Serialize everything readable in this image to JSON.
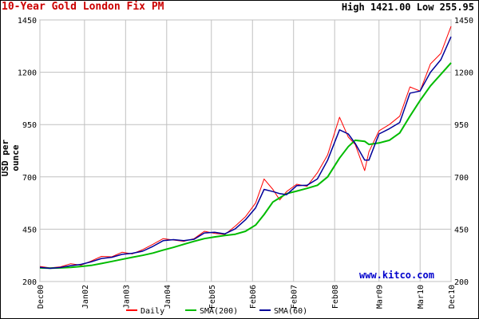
{
  "chart_data": {
    "type": "line",
    "title": "10-Year Gold London Fix PM",
    "summary": "High 1421.00 Low 255.95",
    "ylabel": "USD per ounce",
    "watermark": "www.kitco.com",
    "ylim": [
      200,
      1450
    ],
    "yticks": [
      200,
      450,
      700,
      950,
      1200,
      1450
    ],
    "xlim": [
      "2000-12-01",
      "2010-12-01"
    ],
    "xticks": [
      "Dec00",
      "Jan02",
      "Jan03",
      "Jan04",
      "Feb05",
      "Feb06",
      "Feb07",
      "Feb08",
      "Mar09",
      "Mar10",
      "Dec10"
    ],
    "grid": true,
    "legend_position": "bottom",
    "colors": {
      "daily": "#ff0000",
      "sma200": "#00bb00",
      "sma60": "#000099",
      "title": "#cc0000",
      "watermark": "#0000cc"
    },
    "x": [
      "2000-12-01",
      "2001-03-01",
      "2001-06-01",
      "2001-09-01",
      "2001-12-01",
      "2002-03-01",
      "2002-06-01",
      "2002-09-01",
      "2002-12-01",
      "2003-03-01",
      "2003-06-01",
      "2003-09-01",
      "2003-12-01",
      "2004-03-01",
      "2004-06-01",
      "2004-09-01",
      "2004-12-01",
      "2005-03-01",
      "2005-06-01",
      "2005-09-01",
      "2005-12-01",
      "2006-03-01",
      "2006-05-15",
      "2006-08-01",
      "2006-10-01",
      "2006-12-01",
      "2007-03-01",
      "2007-06-01",
      "2007-09-01",
      "2007-12-01",
      "2008-03-15",
      "2008-06-01",
      "2008-08-01",
      "2008-10-25",
      "2008-12-01",
      "2009-03-01",
      "2009-06-01",
      "2009-09-01",
      "2009-12-01",
      "2010-03-01",
      "2010-06-01",
      "2010-09-01",
      "2010-12-01"
    ],
    "series": [
      {
        "name": "Daily",
        "values": [
          272,
          265,
          270,
          285,
          278,
          298,
          320,
          318,
          340,
          332,
          352,
          378,
          405,
          398,
          392,
          405,
          440,
          430,
          425,
          465,
          510,
          575,
          690,
          640,
          590,
          630,
          665,
          655,
          720,
          805,
          985,
          890,
          855,
          730,
          820,
          920,
          950,
          990,
          1130,
          1110,
          1240,
          1290,
          1420
        ]
      },
      {
        "name": "SMA(200)",
        "values": [
          265,
          264,
          265,
          268,
          272,
          277,
          286,
          296,
          306,
          316,
          325,
          336,
          350,
          363,
          378,
          392,
          405,
          413,
          420,
          426,
          440,
          470,
          520,
          580,
          600,
          620,
          632,
          645,
          660,
          700,
          790,
          845,
          875,
          870,
          855,
          862,
          875,
          910,
          990,
          1065,
          1135,
          1190,
          1245
        ]
      },
      {
        "name": "SMA(60)",
        "values": [
          268,
          263,
          267,
          276,
          282,
          294,
          310,
          316,
          330,
          335,
          345,
          368,
          395,
          400,
          395,
          402,
          432,
          435,
          428,
          452,
          495,
          552,
          640,
          630,
          620,
          615,
          658,
          660,
          690,
          780,
          925,
          905,
          860,
          780,
          780,
          905,
          930,
          960,
          1100,
          1110,
          1200,
          1260,
          1370
        ]
      }
    ]
  }
}
